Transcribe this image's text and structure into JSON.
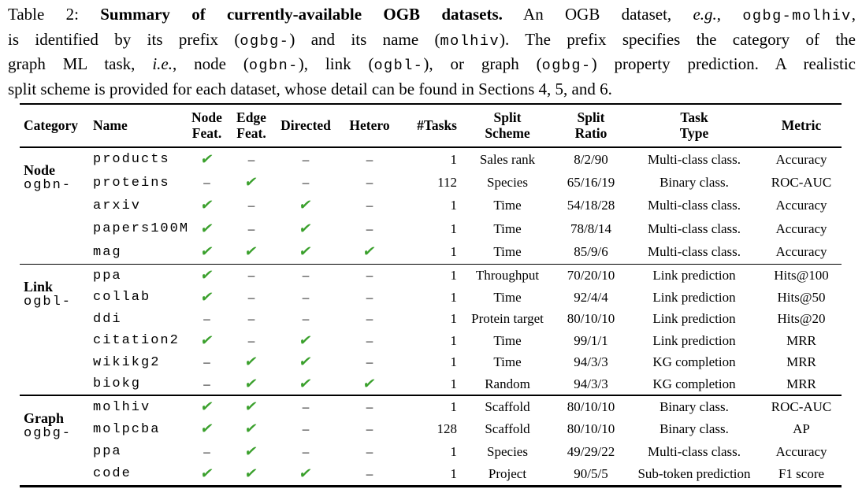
{
  "caption": {
    "lines": [
      [
        {
          "t": "Table 2: ",
          "s": "r"
        },
        {
          "t": "Summary of currently-available OGB datasets.",
          "s": "b"
        },
        {
          "t": " An OGB dataset, ",
          "s": "r"
        },
        {
          "t": "e.g.",
          "s": "i"
        },
        {
          "t": ", ",
          "s": "r"
        },
        {
          "t": "ogbg-molhiv",
          "s": "m"
        },
        {
          "t": ",",
          "s": "r"
        }
      ],
      [
        {
          "t": "is identified by its prefix (",
          "s": "r"
        },
        {
          "t": "ogbg-",
          "s": "m"
        },
        {
          "t": ") and its name (",
          "s": "r"
        },
        {
          "t": "molhiv",
          "s": "m"
        },
        {
          "t": "). The prefix specifies the category of the",
          "s": "r"
        }
      ],
      [
        {
          "t": "graph ML task, ",
          "s": "r"
        },
        {
          "t": "i.e.",
          "s": "i"
        },
        {
          "t": ", node (",
          "s": "r"
        },
        {
          "t": "ogbn-",
          "s": "m"
        },
        {
          "t": "), link (",
          "s": "r"
        },
        {
          "t": "ogbl-",
          "s": "m"
        },
        {
          "t": "), or graph (",
          "s": "r"
        },
        {
          "t": "ogbg-",
          "s": "m"
        },
        {
          "t": ") property prediction. A realistic",
          "s": "r"
        }
      ],
      [
        {
          "t": "split scheme is provided for each dataset, whose detail can be found in Sections 4, 5, and 6.",
          "s": "r"
        }
      ]
    ]
  },
  "table": {
    "check_color": "#3aa02c",
    "check_glyph": "✔",
    "dash_glyph": "–",
    "header": {
      "category": "Category",
      "name": "Name",
      "node_feat": "Node\nFeat.",
      "edge_feat": "Edge\nFeat.",
      "directed": "Directed",
      "hetero": "Hetero",
      "tasks": "#Tasks",
      "split_scheme": "Split\nScheme",
      "split_ratio": "Split\nRatio",
      "task_type": "Task\nType",
      "metric": "Metric"
    },
    "sections": [
      {
        "category": "Node",
        "prefix": "ogbn-",
        "rows": [
          {
            "name": "products",
            "node_feat": true,
            "edge_feat": false,
            "directed": false,
            "hetero": false,
            "tasks": "1",
            "split_scheme": "Sales rank",
            "split_ratio": "8/2/90",
            "task_type": "Multi-class class.",
            "metric": "Accuracy"
          },
          {
            "name": "proteins",
            "node_feat": false,
            "edge_feat": true,
            "directed": false,
            "hetero": false,
            "tasks": "112",
            "split_scheme": "Species",
            "split_ratio": "65/16/19",
            "task_type": "Binary class.",
            "metric": "ROC-AUC"
          },
          {
            "name": "arxiv",
            "node_feat": true,
            "edge_feat": false,
            "directed": true,
            "hetero": false,
            "tasks": "1",
            "split_scheme": "Time",
            "split_ratio": "54/18/28",
            "task_type": "Multi-class class.",
            "metric": "Accuracy"
          },
          {
            "name": "papers100M",
            "node_feat": true,
            "edge_feat": false,
            "directed": true,
            "hetero": false,
            "tasks": "1",
            "split_scheme": "Time",
            "split_ratio": "78/8/14",
            "task_type": "Multi-class class.",
            "metric": "Accuracy"
          },
          {
            "name": "mag",
            "node_feat": true,
            "edge_feat": true,
            "directed": true,
            "hetero": true,
            "tasks": "1",
            "split_scheme": "Time",
            "split_ratio": "85/9/6",
            "task_type": "Multi-class class.",
            "metric": "Accuracy"
          }
        ]
      },
      {
        "category": "Link",
        "prefix": "ogbl-",
        "rows": [
          {
            "name": "ppa",
            "node_feat": true,
            "edge_feat": false,
            "directed": false,
            "hetero": false,
            "tasks": "1",
            "split_scheme": "Throughput",
            "split_ratio": "70/20/10",
            "task_type": "Link prediction",
            "metric": "Hits@100"
          },
          {
            "name": "collab",
            "node_feat": true,
            "edge_feat": false,
            "directed": false,
            "hetero": false,
            "tasks": "1",
            "split_scheme": "Time",
            "split_ratio": "92/4/4",
            "task_type": "Link prediction",
            "metric": "Hits@50"
          },
          {
            "name": "ddi",
            "node_feat": false,
            "edge_feat": false,
            "directed": false,
            "hetero": false,
            "tasks": "1",
            "split_scheme": "Protein target",
            "split_ratio": "80/10/10",
            "task_type": "Link prediction",
            "metric": "Hits@20"
          },
          {
            "name": "citation2",
            "node_feat": true,
            "edge_feat": false,
            "directed": true,
            "hetero": false,
            "tasks": "1",
            "split_scheme": "Time",
            "split_ratio": "99/1/1",
            "task_type": "Link prediction",
            "metric": "MRR"
          },
          {
            "name": "wikikg2",
            "node_feat": false,
            "edge_feat": true,
            "directed": true,
            "hetero": false,
            "tasks": "1",
            "split_scheme": "Time",
            "split_ratio": "94/3/3",
            "task_type": "KG completion",
            "metric": "MRR"
          },
          {
            "name": "biokg",
            "node_feat": false,
            "edge_feat": true,
            "directed": true,
            "hetero": true,
            "tasks": "1",
            "split_scheme": "Random",
            "split_ratio": "94/3/3",
            "task_type": "KG completion",
            "metric": "MRR"
          }
        ]
      },
      {
        "category": "Graph",
        "prefix": "ogbg-",
        "rows": [
          {
            "name": "molhiv",
            "node_feat": true,
            "edge_feat": true,
            "directed": false,
            "hetero": false,
            "tasks": "1",
            "split_scheme": "Scaffold",
            "split_ratio": "80/10/10",
            "task_type": "Binary class.",
            "metric": "ROC-AUC"
          },
          {
            "name": "molpcba",
            "node_feat": true,
            "edge_feat": true,
            "directed": false,
            "hetero": false,
            "tasks": "128",
            "split_scheme": "Scaffold",
            "split_ratio": "80/10/10",
            "task_type": "Binary class.",
            "metric": "AP"
          },
          {
            "name": "ppa",
            "node_feat": false,
            "edge_feat": true,
            "directed": false,
            "hetero": false,
            "tasks": "1",
            "split_scheme": "Species",
            "split_ratio": "49/29/22",
            "task_type": "Multi-class class.",
            "metric": "Accuracy"
          },
          {
            "name": "code",
            "node_feat": true,
            "edge_feat": true,
            "directed": true,
            "hetero": false,
            "tasks": "1",
            "split_scheme": "Project",
            "split_ratio": "90/5/5",
            "task_type": "Sub-token prediction",
            "metric": "F1 score"
          }
        ]
      }
    ]
  }
}
